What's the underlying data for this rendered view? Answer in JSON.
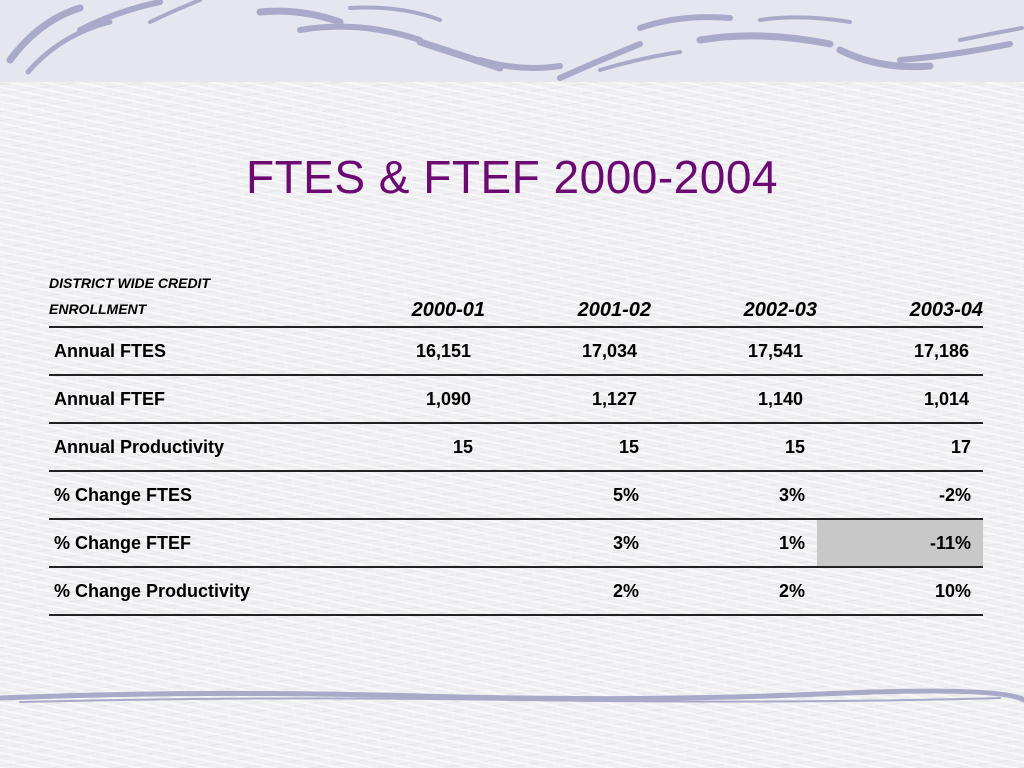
{
  "slide": {
    "title": "FTES & FTEF 2000-2004"
  },
  "table": {
    "header_label_line1": "DISTRICT WIDE CREDIT",
    "header_label_line2": "ENROLLMENT",
    "years": [
      "2000-01",
      "2001-02",
      "2002-03",
      "2003-04"
    ],
    "rows": [
      {
        "label": "Annual FTES",
        "values": [
          "16,151",
          "17,034",
          "17,541",
          "17,186"
        ]
      },
      {
        "label": "Annual FTEF",
        "values": [
          "1,090",
          "1,127",
          "1,140",
          "1,014"
        ]
      },
      {
        "label": "Annual Productivity",
        "values": [
          "15",
          "15",
          "15",
          "17"
        ]
      },
      {
        "label": "% Change FTES",
        "values": [
          "",
          "5%",
          "3%",
          "-2%"
        ]
      },
      {
        "label": "% Change FTEF",
        "values": [
          "",
          "3%",
          "1%",
          "-11%"
        ]
      },
      {
        "label": "% Change Productivity",
        "values": [
          "",
          "2%",
          "2%",
          "10%"
        ]
      }
    ],
    "highlighted_cell": {
      "row": "% Change FTEF",
      "column": "2003-04",
      "color": "#c8c8c8"
    }
  },
  "colors": {
    "title": "#6b0a73",
    "decoration": "#a9a9c9"
  }
}
